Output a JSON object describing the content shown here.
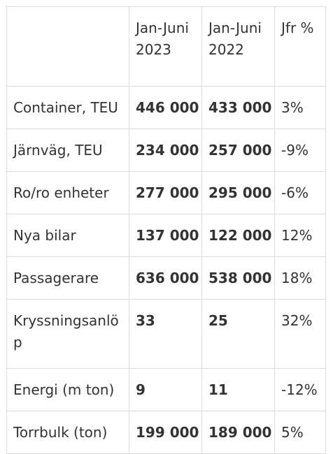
{
  "table": {
    "columns": {
      "label": "",
      "year1": "Jan-Juni 2023",
      "year2": "Jan-Juni 2022",
      "compare": "Jfr %"
    },
    "rows": [
      {
        "label": "Container, TEU",
        "y2023": "446 000",
        "y2022": "433 000",
        "change": "3%"
      },
      {
        "label": "Järnväg, TEU",
        "y2023": "234 000",
        "y2022": "257 000",
        "change": "-9%"
      },
      {
        "label": "Ro/ro enheter",
        "y2023": "277 000",
        "y2022": "295 000",
        "change": "-6%"
      },
      {
        "label": "Nya bilar",
        "y2023": "137 000",
        "y2022": "122 000",
        "change": "12%"
      },
      {
        "label": "Passagerare",
        "y2023": "636 000",
        "y2022": "538 000",
        "change": "18%"
      },
      {
        "label": "Kryssningsanlöp",
        "y2023": "33",
        "y2022": "25",
        "change": "32%"
      },
      {
        "label": "Energi (m ton)",
        "y2023": "9",
        "y2022": "11",
        "change": "-12%"
      },
      {
        "label": "Torrbulk (ton)",
        "y2023": "199 000",
        "y2022": "189 000",
        "change": "5%"
      }
    ]
  },
  "colors": {
    "border": "#dcdcdc",
    "text": "#333333",
    "background": "#ffffff"
  }
}
